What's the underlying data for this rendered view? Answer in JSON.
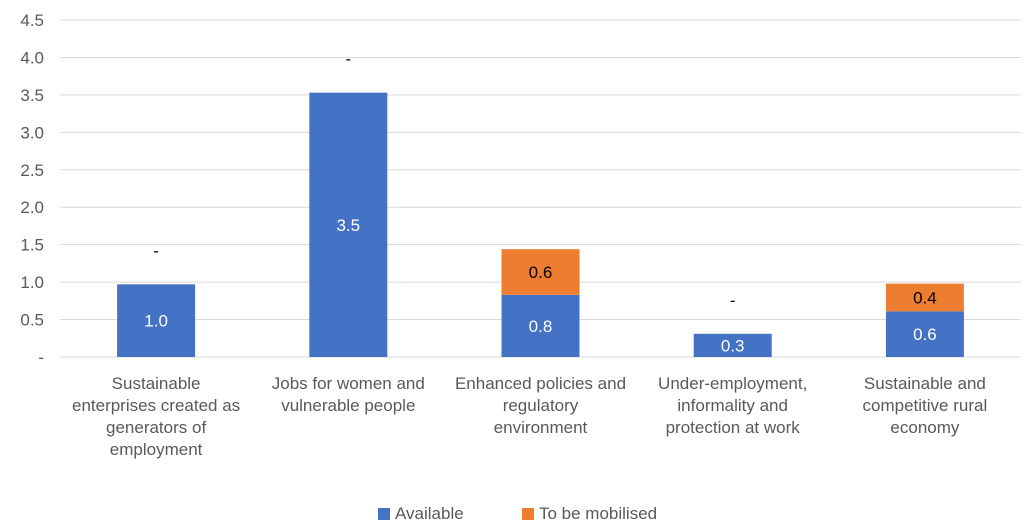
{
  "chart_data": {
    "type": "bar",
    "stacked": true,
    "categories": [
      [
        "Sustainable",
        "enterprises created as",
        "generators of",
        "employment"
      ],
      [
        "Jobs for women and",
        "vulnerable people"
      ],
      [
        "Enhanced policies and",
        "regulatory",
        "environment"
      ],
      [
        "Under-employment,",
        "informality and",
        "protection at work"
      ],
      [
        "Sustainable and",
        "competitive rural",
        "economy"
      ]
    ],
    "series": [
      {
        "name": "Available",
        "color": "#4472C4",
        "values": [
          0.97,
          3.53,
          0.83,
          0.31,
          0.61
        ],
        "labels": [
          "1.0",
          "3.5",
          "0.8",
          "0.3",
          "0.6"
        ],
        "label_color": "#ffffff"
      },
      {
        "name": "To be mobilised",
        "color": "#ED7D31",
        "values": [
          0,
          0,
          0.61,
          0,
          0.37
        ],
        "labels": [
          "-",
          "-",
          "0.6",
          "-",
          "0.4"
        ],
        "label_color": "#000000"
      }
    ],
    "y_ticks": [
      "-",
      "0.5",
      "1.0",
      "1.5",
      "2.0",
      "2.5",
      "3.0",
      "3.5",
      "4.0",
      "4.5"
    ],
    "ylim": [
      0,
      4.5
    ],
    "grid": true,
    "legend": "bottom"
  }
}
